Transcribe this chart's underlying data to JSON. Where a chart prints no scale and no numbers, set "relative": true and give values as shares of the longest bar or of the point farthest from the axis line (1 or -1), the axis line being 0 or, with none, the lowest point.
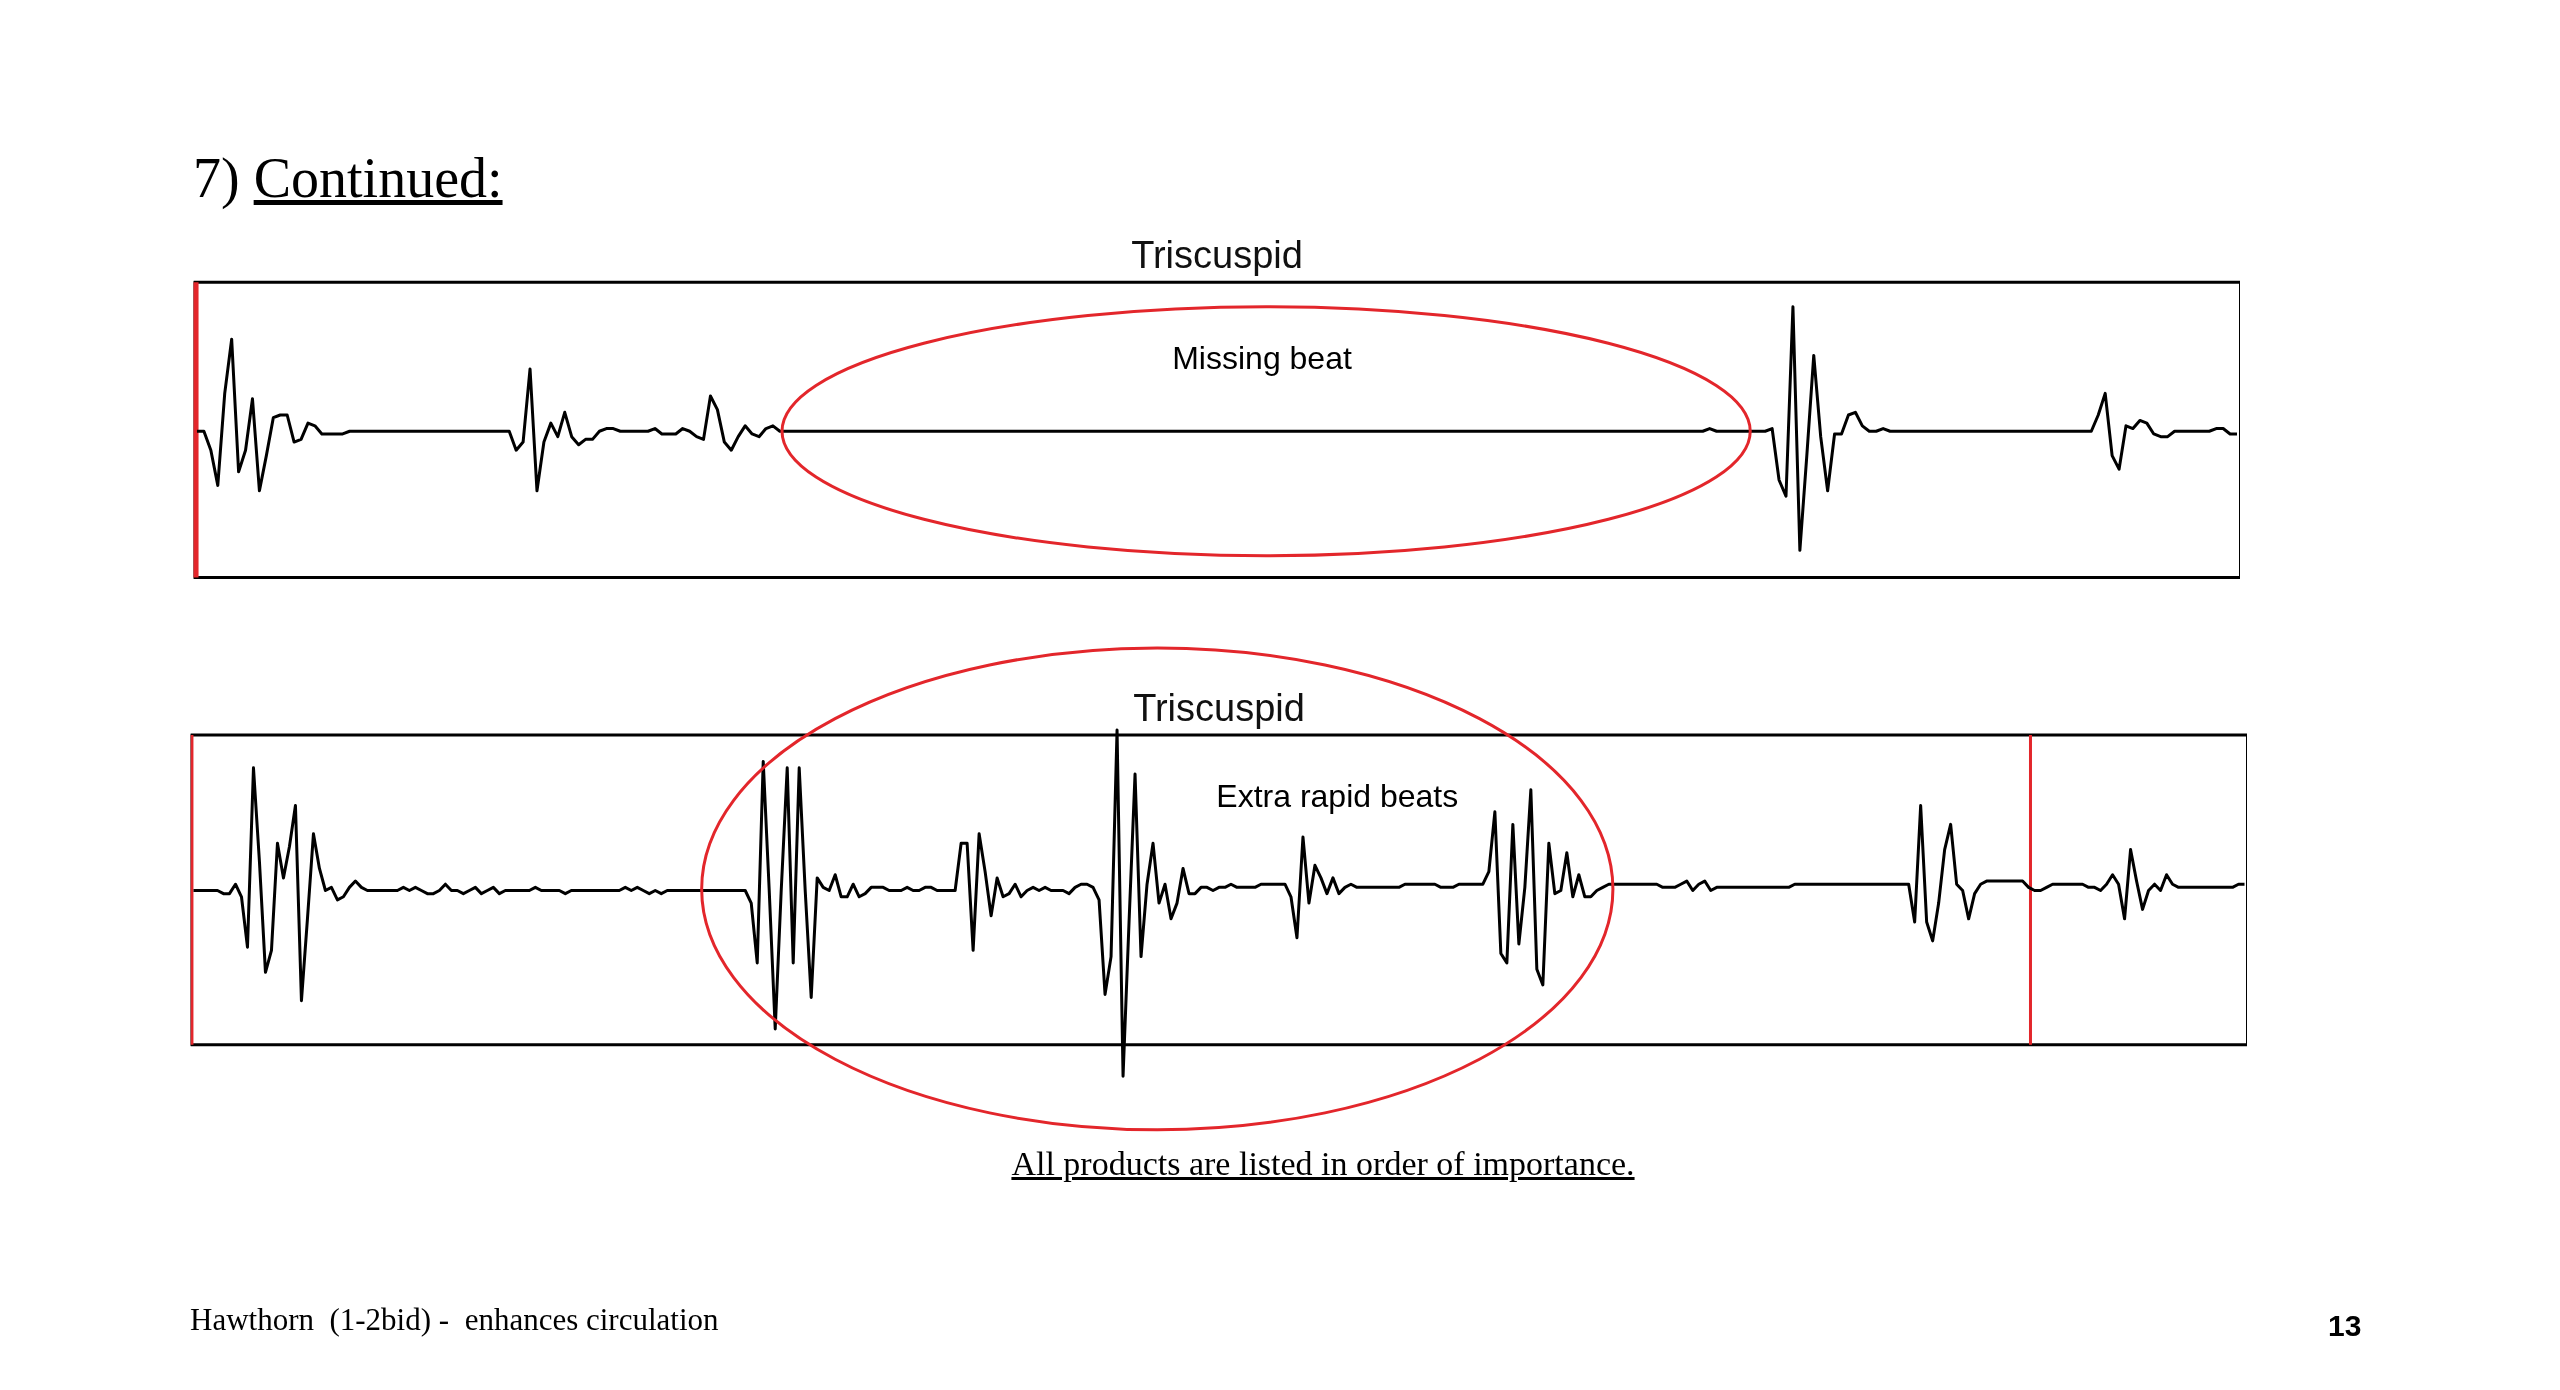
{
  "chart_data": [
    {
      "type": "line",
      "title": "Triscuspid",
      "relative": true,
      "tick_labels": false,
      "categories": [
        null,
        null,
        null,
        null,
        null,
        null,
        null,
        null,
        null,
        null,
        null,
        null,
        null,
        null,
        null,
        null,
        null,
        null,
        null,
        null,
        null,
        null,
        null,
        null,
        null,
        null,
        null,
        null,
        null,
        null,
        null,
        null,
        null,
        null,
        null,
        null,
        null,
        null,
        null,
        null,
        null,
        null,
        null,
        null,
        null,
        null,
        null,
        null,
        null,
        null,
        null,
        null,
        null,
        null,
        null,
        null,
        null,
        null,
        null,
        null,
        null,
        null,
        null,
        null,
        null,
        null,
        null,
        null,
        null,
        null,
        null,
        null,
        null,
        null,
        null,
        null,
        null,
        null,
        null,
        null,
        null,
        null,
        null,
        null,
        null,
        null,
        null,
        null,
        null,
        null,
        null,
        null,
        null,
        null,
        null,
        null,
        null,
        null,
        null,
        null,
        null,
        null,
        null,
        null,
        null,
        null,
        null,
        null,
        null,
        null,
        null,
        null,
        null,
        null,
        null,
        null,
        null,
        null,
        null,
        null,
        null,
        null,
        null,
        null,
        null,
        null,
        null,
        null,
        null,
        null,
        null,
        null,
        null,
        null,
        null,
        null,
        null,
        null,
        null,
        null,
        null,
        null,
        null,
        null,
        null,
        null,
        null,
        null,
        null,
        null,
        null,
        null,
        null,
        null,
        null,
        null,
        null,
        null,
        null,
        null,
        null,
        null,
        null,
        null,
        null,
        null,
        null,
        null,
        null,
        null,
        null,
        null,
        null,
        null,
        null,
        null,
        null,
        null,
        null,
        null,
        null,
        null,
        null,
        null,
        null,
        null,
        null,
        null,
        null,
        null,
        null,
        null,
        null,
        null,
        null,
        null,
        null,
        null,
        null,
        null,
        null,
        null,
        null,
        null,
        null,
        null,
        null,
        null,
        null,
        null,
        null,
        null,
        null,
        null,
        null,
        null,
        null,
        null,
        null,
        null,
        null,
        null,
        null,
        null,
        null,
        null,
        null,
        null,
        null,
        null,
        null,
        null,
        null,
        null,
        null,
        null,
        null,
        null,
        null,
        null,
        null,
        null,
        null,
        null,
        null,
        null,
        null,
        null,
        null,
        null,
        null,
        null,
        null,
        null,
        null,
        null,
        null,
        null,
        null,
        null,
        null,
        null,
        null,
        null,
        null,
        null,
        null,
        null,
        null,
        null,
        null,
        null,
        null,
        null,
        null,
        null,
        null,
        null,
        null,
        null,
        null,
        null,
        null,
        null,
        null,
        null,
        null,
        null,
        null,
        null,
        null,
        null,
        null,
        null,
        null
      ],
      "series": [
        {
          "color": "#000000",
          "values": [
            0.54,
            0.54,
            0.47,
            0.34,
            0.68,
            0.88,
            0.39,
            0.47,
            0.66,
            0.32,
            0.45,
            0.59,
            0.6,
            0.6,
            0.5,
            0.51,
            0.57,
            0.56,
            0.53,
            0.53,
            0.53,
            0.53,
            0.54,
            0.54,
            0.54,
            0.54,
            0.54,
            0.54,
            0.54,
            0.54,
            0.54,
            0.54,
            0.54,
            0.54,
            0.54,
            0.54,
            0.54,
            0.54,
            0.54,
            0.54,
            0.54,
            0.54,
            0.54,
            0.54,
            0.54,
            0.54,
            0.47,
            0.5,
            0.77,
            0.32,
            0.5,
            0.57,
            0.52,
            0.61,
            0.52,
            0.49,
            0.51,
            0.51,
            0.54,
            0.55,
            0.55,
            0.54,
            0.54,
            0.54,
            0.54,
            0.54,
            0.55,
            0.53,
            0.53,
            0.53,
            0.55,
            0.54,
            0.52,
            0.51,
            0.67,
            0.62,
            0.5,
            0.47,
            0.52,
            0.56,
            0.53,
            0.52,
            0.55,
            0.56,
            0.54,
            0.54,
            0.54,
            0.54,
            0.54,
            0.54,
            0.54,
            0.54,
            0.54,
            0.54,
            0.54,
            0.54,
            0.54,
            0.54,
            0.54,
            0.54,
            0.54,
            0.54,
            0.54,
            0.54,
            0.54,
            0.54,
            0.54,
            0.54,
            0.54,
            0.54,
            0.54,
            0.54,
            0.54,
            0.54,
            0.54,
            0.54,
            0.54,
            0.54,
            0.54,
            0.54,
            0.54,
            0.54,
            0.54,
            0.54,
            0.54,
            0.54,
            0.54,
            0.54,
            0.54,
            0.54,
            0.54,
            0.54,
            0.54,
            0.54,
            0.54,
            0.54,
            0.54,
            0.54,
            0.54,
            0.54,
            0.54,
            0.54,
            0.54,
            0.54,
            0.54,
            0.54,
            0.54,
            0.54,
            0.54,
            0.54,
            0.54,
            0.54,
            0.54,
            0.54,
            0.54,
            0.54,
            0.54,
            0.54,
            0.54,
            0.54,
            0.54,
            0.54,
            0.54,
            0.54,
            0.54,
            0.54,
            0.54,
            0.54,
            0.54,
            0.54,
            0.54,
            0.54,
            0.54,
            0.54,
            0.54,
            0.54,
            0.54,
            0.54,
            0.54,
            0.54,
            0.54,
            0.54,
            0.54,
            0.54,
            0.54,
            0.54,
            0.54,
            0.54,
            0.54,
            0.54,
            0.54,
            0.54,
            0.54,
            0.54,
            0.54,
            0.54,
            0.54,
            0.54,
            0.54,
            0.54,
            0.54,
            0.54,
            0.54,
            0.54,
            0.54,
            0.54,
            0.54,
            0.54,
            0.54,
            0.54,
            0.54,
            0.54,
            0.54,
            0.54,
            0.54,
            0.54,
            0.54,
            0.54,
            0.55,
            0.54,
            0.54,
            0.54,
            0.54,
            0.54,
            0.54,
            0.54,
            0.54,
            0.55,
            0.36,
            0.3,
            1.0,
            0.1,
            0.45,
            0.82,
            0.52,
            0.32,
            0.53,
            0.53,
            0.6,
            0.61,
            0.56,
            0.54,
            0.54,
            0.55,
            0.54,
            0.54,
            0.54,
            0.54,
            0.54,
            0.54,
            0.54,
            0.54,
            0.54,
            0.54,
            0.54,
            0.54,
            0.54,
            0.54,
            0.54,
            0.54,
            0.54,
            0.54,
            0.54,
            0.54,
            0.54,
            0.54,
            0.54,
            0.54,
            0.54,
            0.54,
            0.54,
            0.54,
            0.54,
            0.54,
            0.6,
            0.68,
            0.45,
            0.4,
            0.56,
            0.55,
            0.58,
            0.57,
            0.53,
            0.52,
            0.52,
            0.54,
            0.54,
            0.54,
            0.54,
            0.54,
            0.54,
            0.55,
            0.55,
            0.53,
            0.53
          ]
        }
      ],
      "annotations": [
        "7) Continued:",
        "Missing beat"
      ]
    },
    {
      "type": "line",
      "title": "Triscuspid",
      "relative": true,
      "tick_labels": false,
      "categories": [
        null,
        null,
        null,
        null,
        null,
        null,
        null,
        null,
        null,
        null,
        null,
        null,
        null,
        null,
        null,
        null,
        null,
        null,
        null,
        null,
        null,
        null,
        null,
        null,
        null,
        null,
        null,
        null,
        null,
        null,
        null,
        null,
        null,
        null,
        null,
        null,
        null,
        null,
        null,
        null,
        null,
        null,
        null,
        null,
        null,
        null,
        null,
        null,
        null,
        null,
        null,
        null,
        null,
        null,
        null,
        null,
        null,
        null,
        null,
        null,
        null,
        null,
        null,
        null,
        null,
        null,
        null,
        null,
        null,
        null,
        null,
        null,
        null,
        null,
        null,
        null,
        null,
        null,
        null,
        null,
        null,
        null,
        null,
        null,
        null,
        null,
        null,
        null,
        null,
        null,
        null,
        null,
        null,
        null,
        null,
        null,
        null,
        null,
        null,
        null,
        null,
        null,
        null,
        null,
        null,
        null,
        null,
        null,
        null,
        null,
        null,
        null,
        null,
        null,
        null,
        null,
        null,
        null,
        null,
        null,
        null,
        null,
        null,
        null,
        null,
        null,
        null,
        null,
        null,
        null,
        null,
        null,
        null,
        null,
        null,
        null,
        null,
        null,
        null,
        null,
        null,
        null,
        null,
        null,
        null,
        null,
        null,
        null,
        null,
        null,
        null,
        null,
        null,
        null,
        null,
        null,
        null,
        null,
        null,
        null,
        null,
        null,
        null,
        null,
        null,
        null,
        null,
        null,
        null,
        null,
        null,
        null,
        null,
        null,
        null,
        null,
        null,
        null,
        null,
        null,
        null,
        null,
        null,
        null,
        null,
        null,
        null,
        null,
        null,
        null,
        null,
        null,
        null,
        null,
        null,
        null,
        null,
        null,
        null,
        null,
        null,
        null,
        null,
        null,
        null,
        null,
        null,
        null,
        null,
        null,
        null,
        null,
        null,
        null,
        null,
        null,
        null,
        null,
        null,
        null,
        null,
        null,
        null,
        null,
        null,
        null,
        null,
        null,
        null,
        null,
        null,
        null,
        null,
        null,
        null,
        null,
        null,
        null,
        null,
        null,
        null,
        null,
        null,
        null,
        null,
        null,
        null,
        null,
        null,
        null,
        null,
        null,
        null,
        null,
        null,
        null,
        null,
        null,
        null,
        null,
        null,
        null,
        null,
        null,
        null,
        null,
        null,
        null,
        null,
        null,
        null,
        null,
        null,
        null,
        null,
        null,
        null,
        null,
        null,
        null,
        null,
        null,
        null,
        null,
        null,
        null,
        null,
        null,
        null,
        null,
        null,
        null,
        null,
        null,
        null,
        null,
        null,
        null,
        null,
        null,
        null,
        null,
        null,
        null,
        null,
        null,
        null,
        null,
        null,
        null,
        null,
        null,
        null,
        null,
        null,
        null,
        null,
        null,
        null,
        null,
        null,
        null,
        null,
        null,
        null,
        null,
        null,
        null,
        null,
        null,
        null,
        null,
        null,
        null,
        null,
        null,
        null,
        null,
        null,
        null,
        null,
        null,
        null
      ],
      "series": [
        {
          "color": "#000000",
          "values": [
            0.49,
            0.49,
            0.49,
            0.49,
            0.49,
            0.48,
            0.48,
            0.51,
            0.47,
            0.31,
            0.88,
            0.58,
            0.23,
            0.3,
            0.64,
            0.53,
            0.63,
            0.76,
            0.14,
            0.4,
            0.67,
            0.56,
            0.49,
            0.5,
            0.46,
            0.47,
            0.5,
            0.52,
            0.5,
            0.49,
            0.49,
            0.49,
            0.49,
            0.49,
            0.49,
            0.5,
            0.49,
            0.5,
            0.49,
            0.48,
            0.48,
            0.49,
            0.51,
            0.49,
            0.49,
            0.48,
            0.49,
            0.5,
            0.48,
            0.49,
            0.5,
            0.48,
            0.49,
            0.49,
            0.49,
            0.49,
            0.49,
            0.5,
            0.49,
            0.49,
            0.49,
            0.49,
            0.48,
            0.49,
            0.49,
            0.49,
            0.49,
            0.49,
            0.49,
            0.49,
            0.49,
            0.49,
            0.5,
            0.49,
            0.5,
            0.49,
            0.48,
            0.49,
            0.48,
            0.49,
            0.49,
            0.49,
            0.49,
            0.49,
            0.49,
            0.49,
            0.49,
            0.49,
            0.49,
            0.49,
            0.49,
            0.49,
            0.49,
            0.45,
            0.26,
            0.9,
            0.49,
            0.05,
            0.49,
            0.88,
            0.26,
            0.88,
            0.49,
            0.15,
            0.53,
            0.5,
            0.49,
            0.54,
            0.47,
            0.47,
            0.51,
            0.47,
            0.48,
            0.5,
            0.5,
            0.5,
            0.49,
            0.49,
            0.49,
            0.5,
            0.49,
            0.49,
            0.5,
            0.5,
            0.49,
            0.49,
            0.49,
            0.49,
            0.64,
            0.64,
            0.3,
            0.67,
            0.55,
            0.41,
            0.53,
            0.47,
            0.48,
            0.51,
            0.47,
            0.49,
            0.5,
            0.49,
            0.5,
            0.49,
            0.49,
            0.49,
            0.48,
            0.5,
            0.51,
            0.51,
            0.5,
            0.46,
            0.16,
            0.28,
            1.0,
            -0.1,
            0.39,
            0.86,
            0.28,
            0.51,
            0.64,
            0.45,
            0.51,
            0.4,
            0.45,
            0.56,
            0.48,
            0.48,
            0.5,
            0.5,
            0.49,
            0.5,
            0.5,
            0.51,
            0.5,
            0.5,
            0.5,
            0.5,
            0.51,
            0.51,
            0.51,
            0.51,
            0.51,
            0.47,
            0.34,
            0.66,
            0.45,
            0.57,
            0.53,
            0.48,
            0.53,
            0.48,
            0.5,
            0.51,
            0.5,
            0.5,
            0.5,
            0.5,
            0.5,
            0.5,
            0.5,
            0.5,
            0.51,
            0.51,
            0.51,
            0.51,
            0.51,
            0.51,
            0.5,
            0.5,
            0.5,
            0.51,
            0.51,
            0.51,
            0.51,
            0.51,
            0.55,
            0.74,
            0.29,
            0.26,
            0.7,
            0.32,
            0.5,
            0.81,
            0.24,
            0.19,
            0.64,
            0.48,
            0.49,
            0.61,
            0.47,
            0.54,
            0.47,
            0.47,
            0.49,
            0.5,
            0.51,
            0.51,
            0.51,
            0.51,
            0.51,
            0.51,
            0.51,
            0.51,
            0.51,
            0.5,
            0.5,
            0.5,
            0.51,
            0.52,
            0.49,
            0.51,
            0.52,
            0.49,
            0.5,
            0.5,
            0.5,
            0.5,
            0.5,
            0.5,
            0.5,
            0.5,
            0.5,
            0.5,
            0.5,
            0.5,
            0.5,
            0.51,
            0.51,
            0.51,
            0.51,
            0.51,
            0.51,
            0.51,
            0.51,
            0.51,
            0.51,
            0.51,
            0.51,
            0.51,
            0.51,
            0.51,
            0.51,
            0.51,
            0.51,
            0.51,
            0.51,
            0.39,
            0.76,
            0.39,
            0.33,
            0.45,
            0.62,
            0.7,
            0.51,
            0.49,
            0.4,
            0.48,
            0.51,
            0.52,
            0.52,
            0.52,
            0.52,
            0.52,
            0.52,
            0.52,
            0.5,
            0.49,
            0.49,
            0.5,
            0.51,
            0.51,
            0.51,
            0.51,
            0.51,
            0.51,
            0.5,
            0.5,
            0.49,
            0.51,
            0.54,
            0.51,
            0.4,
            0.62,
            0.52,
            0.43,
            0.49,
            0.51,
            0.49,
            0.54,
            0.51,
            0.5,
            0.5,
            0.5,
            0.5,
            0.5,
            0.5,
            0.5,
            0.5,
            0.5,
            0.5,
            0.51,
            0.51
          ]
        }
      ],
      "annotations": [
        "Extra rapid beats",
        "All products are listed in order of importance.",
        "Hawthorn  (1-2bid) -  enhances circulation",
        "13"
      ]
    }
  ]
}
